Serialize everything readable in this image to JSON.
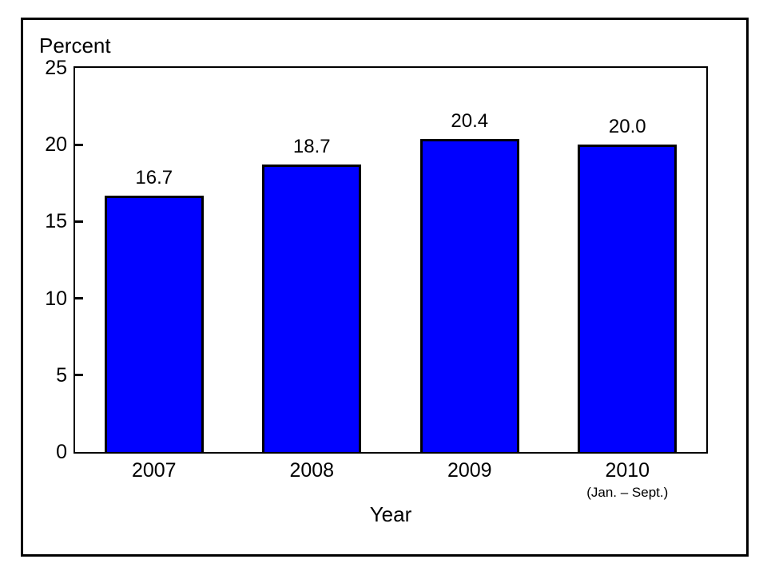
{
  "figure": {
    "background_color": "#ffffff",
    "frame_border_color": "#000000"
  },
  "chart_data": {
    "type": "bar",
    "title": "",
    "categories": [
      "2007",
      "2008",
      "2009",
      "2010"
    ],
    "category_sublabels": [
      "",
      "",
      "",
      "(Jan. – Sept.)"
    ],
    "values": [
      16.7,
      18.7,
      20.4,
      20.0
    ],
    "value_labels": [
      "16.7",
      "18.7",
      "20.4",
      "20.0"
    ],
    "xlabel": "Year",
    "ylabel": "Percent",
    "ylim": [
      0,
      25
    ],
    "yticks": [
      0,
      5,
      10,
      15,
      20,
      25
    ],
    "grid": false,
    "legend": null,
    "bar_color": "#0000ff",
    "bar_border_color": "#000000",
    "axis_color": "#000000"
  }
}
